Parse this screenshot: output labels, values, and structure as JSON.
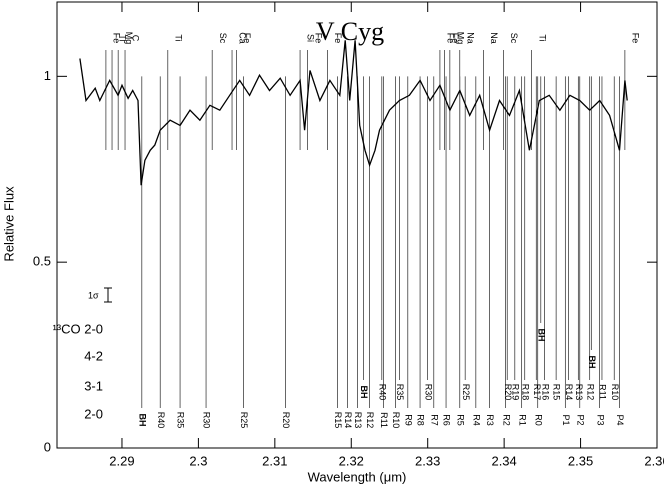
{
  "chart_data": {
    "type": "line",
    "title": "V Cyg",
    "xlabel": "Wavelength (μm)",
    "ylabel": "Relative Flux",
    "xlim": [
      2.2815,
      2.36
    ],
    "ylim": [
      0,
      1.2
    ],
    "xticks": [
      2.29,
      2.3,
      2.31,
      2.32,
      2.33,
      2.34,
      2.35,
      2.36
    ],
    "yticks": [
      0,
      0.5,
      1
    ],
    "color": "#000000",
    "x": [
      2.2845,
      2.2853,
      2.2865,
      2.2871,
      2.2884,
      2.2895,
      2.29,
      2.2908,
      2.2914,
      2.2921,
      2.2925,
      2.293,
      2.2937,
      2.2943,
      2.295,
      2.2963,
      2.2976,
      2.2989,
      2.3002,
      2.3015,
      2.3028,
      2.3041,
      2.3054,
      2.3067,
      2.308,
      2.3093,
      2.3107,
      2.312,
      2.3133,
      2.3139,
      2.3146,
      2.3159,
      2.3172,
      2.3185,
      2.3192,
      2.3198,
      2.3205,
      2.3211,
      2.3218,
      2.3224,
      2.3231,
      2.3237,
      2.325,
      2.3263,
      2.3276,
      2.329,
      2.3303,
      2.3316,
      2.3329,
      2.3342,
      2.3355,
      2.3368,
      2.3381,
      2.3394,
      2.3407,
      2.342,
      2.3433,
      2.3446,
      2.3459,
      2.3473,
      2.3486,
      2.3499,
      2.3512,
      2.3525,
      2.3538,
      2.3551,
      2.3558,
      2.3561
    ],
    "values": [
      1.048,
      0.935,
      0.968,
      0.935,
      0.989,
      0.949,
      0.976,
      0.941,
      0.962,
      0.935,
      0.707,
      0.774,
      0.801,
      0.815,
      0.855,
      0.882,
      0.868,
      0.909,
      0.882,
      0.922,
      0.909,
      0.949,
      0.989,
      0.949,
      1.003,
      0.962,
      0.995,
      0.949,
      0.989,
      0.855,
      1.016,
      0.935,
      0.989,
      0.949,
      1.097,
      0.935,
      1.097,
      0.868,
      0.801,
      0.761,
      0.801,
      0.855,
      0.909,
      0.935,
      0.949,
      0.989,
      0.935,
      0.976,
      0.909,
      0.962,
      0.895,
      0.949,
      0.855,
      0.935,
      0.895,
      0.962,
      0.801,
      0.935,
      0.949,
      0.909,
      0.949,
      0.935,
      0.909,
      0.935,
      0.895,
      0.801,
      0.989,
      0.935
    ],
    "line_ids": [
      {
        "label": "Fe",
        "x": 2.2879
      },
      {
        "label": "Ti",
        "x": 2.2887
      },
      {
        "label": "Mg",
        "x": 2.2895
      },
      {
        "label": "C",
        "x": 2.2904
      },
      {
        "label": "Ti",
        "x": 2.296
      },
      {
        "label": "Sc",
        "x": 2.3018
      },
      {
        "label": "Ca",
        "x": 2.3044
      },
      {
        "label": "Fe",
        "x": 2.305
      },
      {
        "label": "Si",
        "x": 2.3133
      },
      {
        "label": "Fe",
        "x": 2.3143
      },
      {
        "label": "Fe",
        "x": 2.3169
      },
      {
        "label": "Fe",
        "x": 2.3316
      },
      {
        "label": "Fe",
        "x": 2.3322
      },
      {
        "label": "Mg",
        "x": 2.3329
      },
      {
        "label": "Na",
        "x": 2.3342
      },
      {
        "label": "Na",
        "x": 2.3373
      },
      {
        "label": "Sc",
        "x": 2.3399
      },
      {
        "label": "Ti",
        "x": 2.3436
      },
      {
        "label": "Fe",
        "x": 2.3558
      }
    ],
    "bands": [
      {
        "name": "2-0",
        "lines": [
          {
            "label": "BH",
            "x": 2.2926
          },
          {
            "label": "R40",
            "x": 2.295
          },
          {
            "label": "R35",
            "x": 2.2976
          },
          {
            "label": "R30",
            "x": 2.301
          },
          {
            "label": "R25",
            "x": 2.3059
          },
          {
            "label": "R20",
            "x": 2.3114
          },
          {
            "label": "R15",
            "x": 2.3182
          },
          {
            "label": "R14",
            "x": 2.3195
          },
          {
            "label": "R13",
            "x": 2.3208
          },
          {
            "label": "R12",
            "x": 2.3224
          },
          {
            "label": "R11",
            "x": 2.3242
          },
          {
            "label": "R10",
            "x": 2.3258
          },
          {
            "label": "R9",
            "x": 2.3274
          },
          {
            "label": "R8",
            "x": 2.329
          },
          {
            "label": "R7",
            "x": 2.3308
          },
          {
            "label": "R6",
            "x": 2.3324
          },
          {
            "label": "R5",
            "x": 2.3342
          },
          {
            "label": "R4",
            "x": 2.3363
          },
          {
            "label": "R3",
            "x": 2.3381
          },
          {
            "label": "R2",
            "x": 2.3402
          },
          {
            "label": "R1",
            "x": 2.3423
          },
          {
            "label": "R0",
            "x": 2.3444
          },
          {
            "label": "P1",
            "x": 2.348
          },
          {
            "label": "P2",
            "x": 2.3499
          },
          {
            "label": "P3",
            "x": 2.3525
          },
          {
            "label": "P4",
            "x": 2.3551
          }
        ]
      },
      {
        "name": "3-1",
        "lines": [
          {
            "label": "BH",
            "x": 2.3216
          },
          {
            "label": "R40",
            "x": 2.324
          },
          {
            "label": "R35",
            "x": 2.3263
          },
          {
            "label": "R30",
            "x": 2.33
          },
          {
            "label": "R25",
            "x": 2.3349
          },
          {
            "label": "R20",
            "x": 2.3404
          },
          {
            "label": "R19",
            "x": 2.3414
          },
          {
            "label": "R18",
            "x": 2.3427
          },
          {
            "label": "R17",
            "x": 2.3442
          },
          {
            "label": "R16",
            "x": 2.3453
          },
          {
            "label": "R15",
            "x": 2.3468
          },
          {
            "label": "R14",
            "x": 2.3484
          },
          {
            "label": "R13",
            "x": 2.3497
          },
          {
            "label": "R12",
            "x": 2.3512
          },
          {
            "label": "R11",
            "x": 2.3528
          },
          {
            "label": "R10",
            "x": 2.3544
          }
        ]
      },
      {
        "name": "4-2",
        "lines": [
          {
            "label": "BH",
            "x": 2.3514
          }
        ]
      },
      {
        "name": "¹³CO 2-0",
        "lines": [
          {
            "label": "BH",
            "x": 2.3448
          }
        ]
      }
    ],
    "sigma_label": "1σ"
  }
}
